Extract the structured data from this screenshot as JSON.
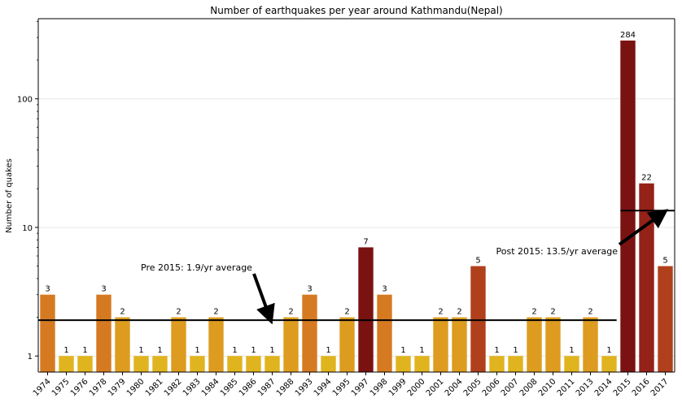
{
  "chart_data": {
    "type": "bar",
    "title": "Number of earthquakes per year around Kathmandu(Nepal)",
    "xlabel": "",
    "ylabel": "Number of quakes",
    "yscale": "log",
    "ylim": [
      0.75,
      420
    ],
    "yticks": [
      1,
      10,
      100
    ],
    "ytick_labels": [
      "1",
      "10",
      "100"
    ],
    "grid": "horizontal",
    "categories": [
      "1974",
      "1975",
      "1976",
      "1978",
      "1979",
      "1980",
      "1981",
      "1982",
      "1983",
      "1984",
      "1985",
      "1986",
      "1987",
      "1988",
      "1993",
      "1994",
      "1995",
      "1997",
      "1998",
      "1999",
      "2000",
      "2001",
      "2004",
      "2005",
      "2006",
      "2007",
      "2008",
      "2010",
      "2011",
      "2013",
      "2014",
      "2015",
      "2016",
      "2017"
    ],
    "values": [
      3,
      1,
      1,
      3,
      2,
      1,
      1,
      2,
      1,
      2,
      1,
      1,
      1,
      2,
      3,
      1,
      2,
      7,
      3,
      1,
      1,
      2,
      2,
      5,
      1,
      1,
      2,
      2,
      1,
      2,
      1,
      284,
      22,
      5
    ],
    "colors": {
      "1": "#e0b41e",
      "2": "#dd9c1f",
      "3": "#d67a22",
      "5": "#b0401c",
      "7": "#7a1212",
      "22": "#952218",
      "284": "#7a1212"
    },
    "reference_lines": [
      {
        "value": 1.9,
        "from_category": "1974",
        "to_category": "2014"
      },
      {
        "value": 13.5,
        "from_category": "2015",
        "to_category": "2017"
      }
    ],
    "annotations": [
      {
        "text": "Pre 2015: 1.9/yr average",
        "points_to_category": "1987",
        "points_to_value": 1.9
      },
      {
        "text": "Post 2015: 13.5/yr average",
        "points_to_category": "2017",
        "points_to_value": 13.5
      }
    ]
  }
}
